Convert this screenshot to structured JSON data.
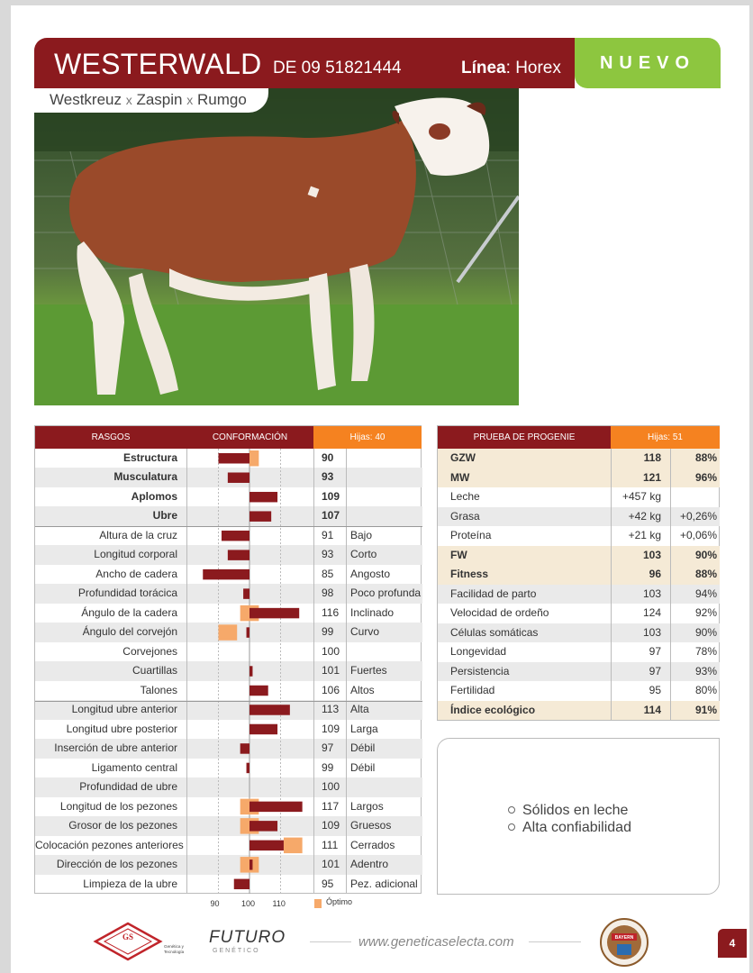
{
  "header": {
    "name": "WESTERWALD",
    "code": "DE 09 51821444",
    "linea_label": "Línea",
    "linea_value": "Horex",
    "badge": "NUEVO",
    "pedigree": [
      {
        "text": "Westkreuz"
      },
      {
        "sep": "x"
      },
      {
        "text": "Zaspin"
      },
      {
        "sep": "x"
      },
      {
        "text": "Rumgo"
      }
    ]
  },
  "conformacion": {
    "headers": {
      "rasgos": "RASGOS",
      "conformacion": "CONFORMACIÓN",
      "hijas": "Hijas: 40"
    },
    "axis_ticks": [
      "90",
      "100",
      "110"
    ],
    "legend": "Óptimo",
    "colors": {
      "bar": "#8b1a1e",
      "optimum": "#f6a96a"
    },
    "rows": [
      {
        "label": "Estructura",
        "value": "90",
        "desc": "",
        "bold": true,
        "opt": [
          100,
          103
        ]
      },
      {
        "label": "Musculatura",
        "value": "93",
        "desc": "",
        "bold": true
      },
      {
        "label": "Aplomos",
        "value": "109",
        "desc": "",
        "bold": true
      },
      {
        "label": "Ubre",
        "value": "107",
        "desc": "",
        "bold": true
      },
      {
        "label": "Altura de la cruz",
        "value": "91",
        "desc": "Bajo"
      },
      {
        "label": "Longitud corporal",
        "value": "93",
        "desc": "Corto"
      },
      {
        "label": "Ancho de cadera",
        "value": "85",
        "desc": "Angosto"
      },
      {
        "label": "Profundidad torácica",
        "value": "98",
        "desc": "Poco profunda"
      },
      {
        "label": "Ángulo de la cadera",
        "value": "116",
        "desc": "Inclinado",
        "opt": [
          97,
          103
        ]
      },
      {
        "label": "Ángulo del corvejón",
        "value": "99",
        "desc": "Curvo",
        "opt": [
          90,
          96
        ]
      },
      {
        "label": "Corvejones",
        "value": "100",
        "desc": ""
      },
      {
        "label": "Cuartillas",
        "value": "101",
        "desc": "Fuertes"
      },
      {
        "label": "Talones",
        "value": "106",
        "desc": "Altos"
      },
      {
        "label": "Longitud ubre anterior",
        "value": "113",
        "desc": "Alta"
      },
      {
        "label": "Longitud ubre posterior",
        "value": "109",
        "desc": "Larga"
      },
      {
        "label": "Inserción de ubre anterior",
        "value": "97",
        "desc": "Débil"
      },
      {
        "label": "Ligamento central",
        "value": "99",
        "desc": "Débil"
      },
      {
        "label": "Profundidad de ubre",
        "value": "100",
        "desc": ""
      },
      {
        "label": "Longitud de los pezones",
        "value": "117",
        "desc": "Largos",
        "opt": [
          97,
          103
        ]
      },
      {
        "label": "Grosor de los pezones",
        "value": "109",
        "desc": "Gruesos",
        "opt": [
          97,
          103
        ]
      },
      {
        "label": "Colocación pezones anteriores",
        "value": "111",
        "desc": "Cerrados",
        "opt": [
          111,
          117
        ]
      },
      {
        "label": "Dirección de los pezones",
        "value": "101",
        "desc": "Adentro",
        "opt": [
          97,
          103
        ]
      },
      {
        "label": "Limpieza de la ubre",
        "value": "95",
        "desc": "Pez. adicional"
      }
    ]
  },
  "progenie": {
    "headers": {
      "prueba": "PRUEBA DE PROGENIE",
      "hijas": "Hijas: 51"
    },
    "rows": [
      {
        "label": "GZW",
        "value": "118",
        "rel": "88%",
        "bold": true,
        "hl": true
      },
      {
        "label": "MW",
        "value": "121",
        "rel": "96%",
        "bold": true,
        "hl": true
      },
      {
        "label": "Leche",
        "value": "+457 kg",
        "rel": ""
      },
      {
        "label": "Grasa",
        "value": "+42 kg",
        "rel": "+0,26%"
      },
      {
        "label": "Proteína",
        "value": "+21 kg",
        "rel": "+0,06%"
      },
      {
        "label": "FW",
        "value": "103",
        "rel": "90%",
        "bold": true,
        "hl": true
      },
      {
        "label": "Fitness",
        "value": "96",
        "rel": "88%",
        "bold": true,
        "hl": true
      },
      {
        "label": "Facilidad de parto",
        "value": "103",
        "rel": "94%"
      },
      {
        "label": "Velocidad de ordeño",
        "value": "124",
        "rel": "92%"
      },
      {
        "label": "Células somáticas",
        "value": "103",
        "rel": "90%"
      },
      {
        "label": "Longevidad",
        "value": "97",
        "rel": "78%"
      },
      {
        "label": "Persistencia",
        "value": "97",
        "rel": "93%"
      },
      {
        "label": "Fertilidad",
        "value": "95",
        "rel": "80%"
      },
      {
        "label": "Índice ecológico",
        "value": "114",
        "rel": "91%",
        "bold": true,
        "hl": true
      }
    ]
  },
  "notes": [
    "Sólidos en leche",
    "Alta confiabilidad"
  ],
  "footer": {
    "url": "www.geneticaselecta.com",
    "page": "4",
    "logo1_text": "Genética y Tecnología asegurar Su Futuro",
    "logo2_text": "FUTURO",
    "logo2_sub": "GENÉTICO",
    "logo3_text": "BAYERN GENETIK"
  }
}
